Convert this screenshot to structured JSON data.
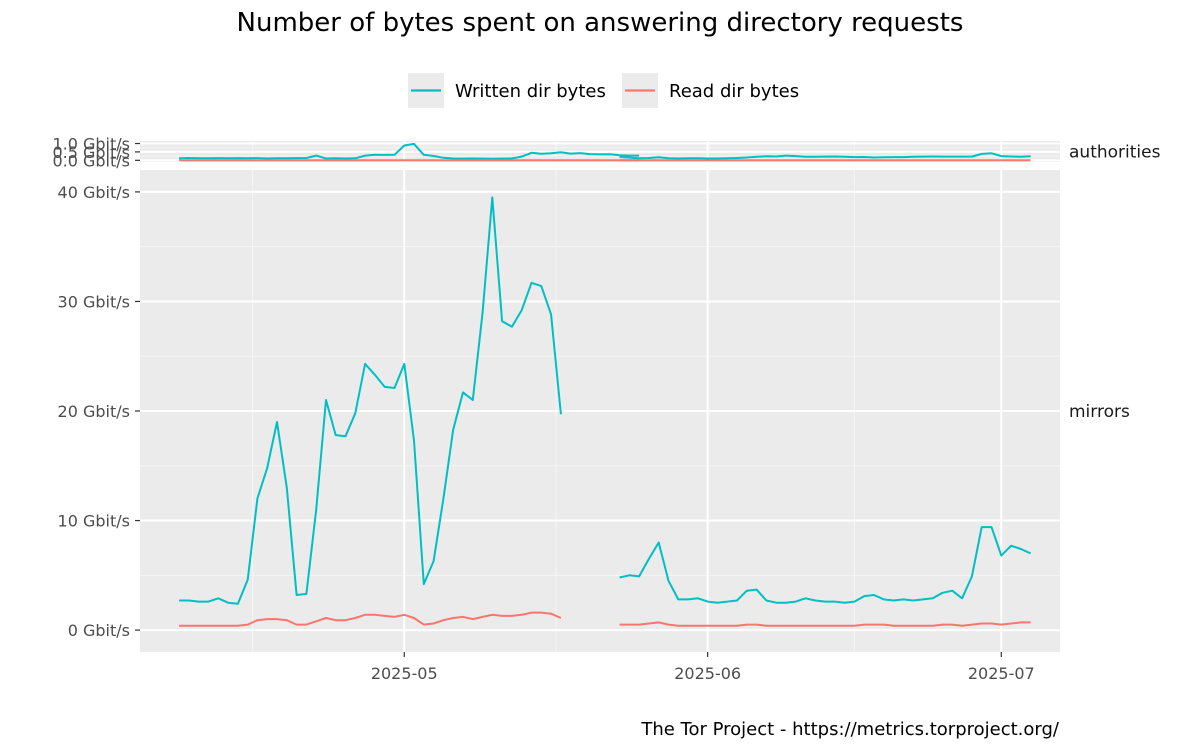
{
  "chart_data": {
    "type": "line",
    "title": "Number of bytes spent on answering directory requests",
    "caption": "The Tor Project - https://metrics.torproject.org/",
    "xlabel": "",
    "ylabel": "",
    "x_tick_labels": [
      "2025-05",
      "2025-06",
      "2025-07"
    ],
    "x_tick_dates": [
      "2025-05-01",
      "2025-06-01",
      "2025-07-01"
    ],
    "x_range": [
      "2025-04-04",
      "2025-07-07"
    ],
    "legend": {
      "position": "top",
      "entries": [
        {
          "label": "Written dir bytes",
          "color": "#00BFC4"
        },
        {
          "label": "Read dir bytes",
          "color": "#F8766D"
        }
      ]
    },
    "grid": true,
    "background": "#EBEBEB",
    "series_colors": {
      "written": "#00BFC4",
      "read": "#F8766D"
    },
    "panels": [
      {
        "name": "authorities",
        "y_unit": "Gbit/s",
        "y_tick_values": [
          0,
          0.5,
          1.0
        ],
        "y_tick_labels": [
          "0.0 Gbit/s",
          "0.5 Gbit/s",
          "1.0 Gbit/s"
        ],
        "ylim": [
          -0.1,
          1.15
        ],
        "series": [
          {
            "key": "written",
            "segments": [
              {
                "start": "2025-04-08",
                "values": [
                  0.12,
                  0.14,
                  0.12,
                  0.12,
                  0.13,
                  0.12,
                  0.13,
                  0.12,
                  0.13,
                  0.11,
                  0.12,
                  0.12,
                  0.13,
                  0.14,
                  0.28,
                  0.11,
                  0.12,
                  0.11,
                  0.12,
                  0.28,
                  0.33,
                  0.32,
                  0.33,
                  0.88,
                  0.98,
                  0.33,
                  0.26,
                  0.15,
                  0.11,
                  0.1,
                  0.11,
                  0.1,
                  0.09,
                  0.1,
                  0.11,
                  0.22,
                  0.45,
                  0.39,
                  0.42,
                  0.48,
                  0.4,
                  0.43,
                  0.37,
                  0.35,
                  0.36,
                  0.3,
                  0.28,
                  0.28
                ]
              },
              {
                "start": "2025-05-23",
                "values": [
                  0.2,
                  0.16,
                  0.12,
                  0.14,
                  0.18,
                  0.12,
                  0.11,
                  0.12,
                  0.12,
                  0.11,
                  0.11,
                  0.12,
                  0.14,
                  0.17,
                  0.21,
                  0.24,
                  0.23,
                  0.28,
                  0.25,
                  0.21,
                  0.21,
                  0.22,
                  0.23,
                  0.21,
                  0.19,
                  0.2,
                  0.17,
                  0.18,
                  0.19,
                  0.19,
                  0.21,
                  0.22,
                  0.23,
                  0.22,
                  0.22,
                  0.22,
                  0.22,
                  0.38,
                  0.42,
                  0.25,
                  0.23,
                  0.21,
                  0.24
                ]
              }
            ]
          },
          {
            "key": "read",
            "segments": [
              {
                "start": "2025-04-08",
                "values": [
                  0.01,
                  0.01,
                  0.01,
                  0.01,
                  0.01,
                  0.01,
                  0.01,
                  0.01,
                  0.01,
                  0.01,
                  0.01,
                  0.01,
                  0.01,
                  0.01,
                  0.01,
                  0.01,
                  0.01,
                  0.01,
                  0.01,
                  0.01,
                  0.01,
                  0.01,
                  0.01,
                  0.01,
                  0.01,
                  0.01,
                  0.01,
                  0.01,
                  0.01,
                  0.01,
                  0.01,
                  0.01,
                  0.01,
                  0.01,
                  0.01,
                  0.01,
                  0.01,
                  0.01,
                  0.01,
                  0.01,
                  0.01,
                  0.01,
                  0.01,
                  0.01,
                  0.01,
                  0.01,
                  0.01,
                  0.01
                ]
              },
              {
                "start": "2025-05-23",
                "values": [
                  0.01,
                  0.01,
                  0.01,
                  0.01,
                  0.01,
                  0.01,
                  0.01,
                  0.01,
                  0.01,
                  0.01,
                  0.01,
                  0.01,
                  0.01,
                  0.01,
                  0.01,
                  0.01,
                  0.01,
                  0.01,
                  0.01,
                  0.01,
                  0.01,
                  0.01,
                  0.01,
                  0.01,
                  0.01,
                  0.01,
                  0.01,
                  0.01,
                  0.01,
                  0.01,
                  0.01,
                  0.01,
                  0.01,
                  0.01,
                  0.01,
                  0.01,
                  0.01,
                  0.01,
                  0.01,
                  0.01,
                  0.01,
                  0.01,
                  0.01
                ]
              }
            ]
          }
        ]
      },
      {
        "name": "mirrors",
        "y_unit": "Gbit/s",
        "y_tick_values": [
          0,
          10,
          20,
          30,
          40
        ],
        "y_tick_labels": [
          "0 Gbit/s",
          "10 Gbit/s",
          "20 Gbit/s",
          "30 Gbit/s",
          "40 Gbit/s"
        ],
        "ylim": [
          -2,
          42
        ],
        "series": [
          {
            "key": "written",
            "segments": [
              {
                "start": "2025-04-08",
                "values": [
                  2.7,
                  2.7,
                  2.6,
                  2.6,
                  2.9,
                  2.5,
                  2.4,
                  4.6,
                  12.0,
                  14.8,
                  19.0,
                  13.0,
                  3.2,
                  3.3,
                  11.0,
                  21.0,
                  17.8,
                  17.7,
                  19.8,
                  24.3,
                  23.3,
                  22.2,
                  22.1,
                  24.3,
                  17.3,
                  4.2,
                  6.3,
                  12.0,
                  18.3,
                  21.7,
                  21.0,
                  29.0,
                  39.5,
                  28.2,
                  27.7,
                  29.2,
                  31.7,
                  31.4,
                  28.8,
                  19.7
                ]
              },
              {
                "start": "2025-05-23",
                "values": [
                  4.8,
                  5.0,
                  4.9,
                  6.5,
                  8.0,
                  4.5,
                  2.8,
                  2.8,
                  2.9,
                  2.6,
                  2.5,
                  2.6,
                  2.7,
                  3.6,
                  3.7,
                  2.7,
                  2.5,
                  2.5,
                  2.6,
                  2.9,
                  2.7,
                  2.6,
                  2.6,
                  2.5,
                  2.6,
                  3.1,
                  3.2,
                  2.8,
                  2.7,
                  2.8,
                  2.7,
                  2.8,
                  2.9,
                  3.4,
                  3.6,
                  2.9,
                  4.9,
                  9.4,
                  9.4,
                  6.8,
                  7.7,
                  7.4,
                  7.0
                ]
              }
            ]
          },
          {
            "key": "read",
            "segments": [
              {
                "start": "2025-04-08",
                "values": [
                  0.4,
                  0.4,
                  0.4,
                  0.4,
                  0.4,
                  0.4,
                  0.4,
                  0.5,
                  0.9,
                  1.0,
                  1.0,
                  0.9,
                  0.5,
                  0.5,
                  0.8,
                  1.1,
                  0.9,
                  0.9,
                  1.1,
                  1.4,
                  1.4,
                  1.3,
                  1.2,
                  1.4,
                  1.1,
                  0.5,
                  0.6,
                  0.9,
                  1.1,
                  1.2,
                  1.0,
                  1.2,
                  1.4,
                  1.3,
                  1.3,
                  1.4,
                  1.6,
                  1.6,
                  1.5,
                  1.1
                ]
              },
              {
                "start": "2025-05-23",
                "values": [
                  0.5,
                  0.5,
                  0.5,
                  0.6,
                  0.7,
                  0.5,
                  0.4,
                  0.4,
                  0.4,
                  0.4,
                  0.4,
                  0.4,
                  0.4,
                  0.5,
                  0.5,
                  0.4,
                  0.4,
                  0.4,
                  0.4,
                  0.4,
                  0.4,
                  0.4,
                  0.4,
                  0.4,
                  0.4,
                  0.5,
                  0.5,
                  0.5,
                  0.4,
                  0.4,
                  0.4,
                  0.4,
                  0.4,
                  0.5,
                  0.5,
                  0.4,
                  0.5,
                  0.6,
                  0.6,
                  0.5,
                  0.6,
                  0.7,
                  0.7
                ]
              }
            ]
          }
        ]
      }
    ]
  }
}
